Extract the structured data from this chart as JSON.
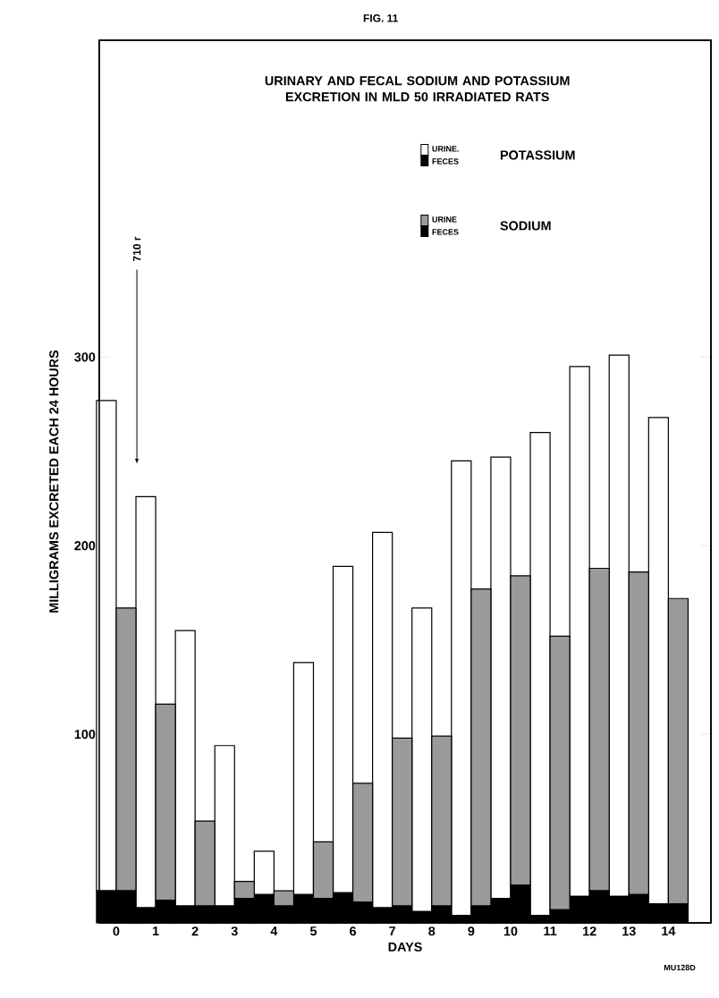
{
  "chart_data": [
    {
      "type": "bar",
      "title": "FIG. 11",
      "subtitle": "URINARY AND FECAL SODIUM AND POTASSIUM EXCRETION IN MLD 50 IRRADIATED RATS",
      "xlabel": "DAYS",
      "ylabel": "MILLIGRAMS      EXCRETED EACH 24 HOURS",
      "categories": [
        "0",
        "1",
        "2",
        "3",
        "4",
        "5",
        "6",
        "7",
        "8",
        "9",
        "10",
        "11",
        "12",
        "13",
        "14"
      ],
      "stacked": true,
      "legend_title": "POTASSIUM",
      "series": [
        {
          "name": "FECES",
          "color": "#000000",
          "values": [
            17,
            8,
            9,
            9,
            15,
            15,
            16,
            8,
            6,
            4,
            13,
            4,
            14,
            14,
            10
          ]
        },
        {
          "name": "URINE.",
          "color": "#ffffff",
          "values": [
            260,
            218,
            146,
            85,
            23,
            123,
            173,
            199,
            161,
            241,
            234,
            256,
            281,
            287,
            258
          ]
        }
      ],
      "ylim": [
        0,
        468
      ],
      "yticks": [
        100,
        200,
        300
      ],
      "legend": "top right",
      "annotations": [
        "710 r",
        "MU128D"
      ]
    },
    {
      "type": "bar",
      "categories": [
        "0",
        "1",
        "2",
        "3",
        "4",
        "5",
        "6",
        "7",
        "8",
        "9",
        "10",
        "11",
        "12",
        "13",
        "14"
      ],
      "stacked": true,
      "legend_title": "SODIUM",
      "series": [
        {
          "name": "FECES",
          "color": "#000000",
          "values": [
            17,
            12,
            9,
            13,
            9,
            13,
            11,
            9,
            9,
            9,
            20,
            7,
            17,
            15,
            10
          ]
        },
        {
          "name": "URINE",
          "color": "#9a9a9a",
          "values": [
            150,
            104,
            45,
            9,
            8,
            30,
            63,
            89,
            90,
            168,
            164,
            145,
            171,
            171,
            162
          ]
        }
      ],
      "ylim": [
        0,
        468
      ],
      "legend": "top right",
      "tick_labels": false
    }
  ]
}
